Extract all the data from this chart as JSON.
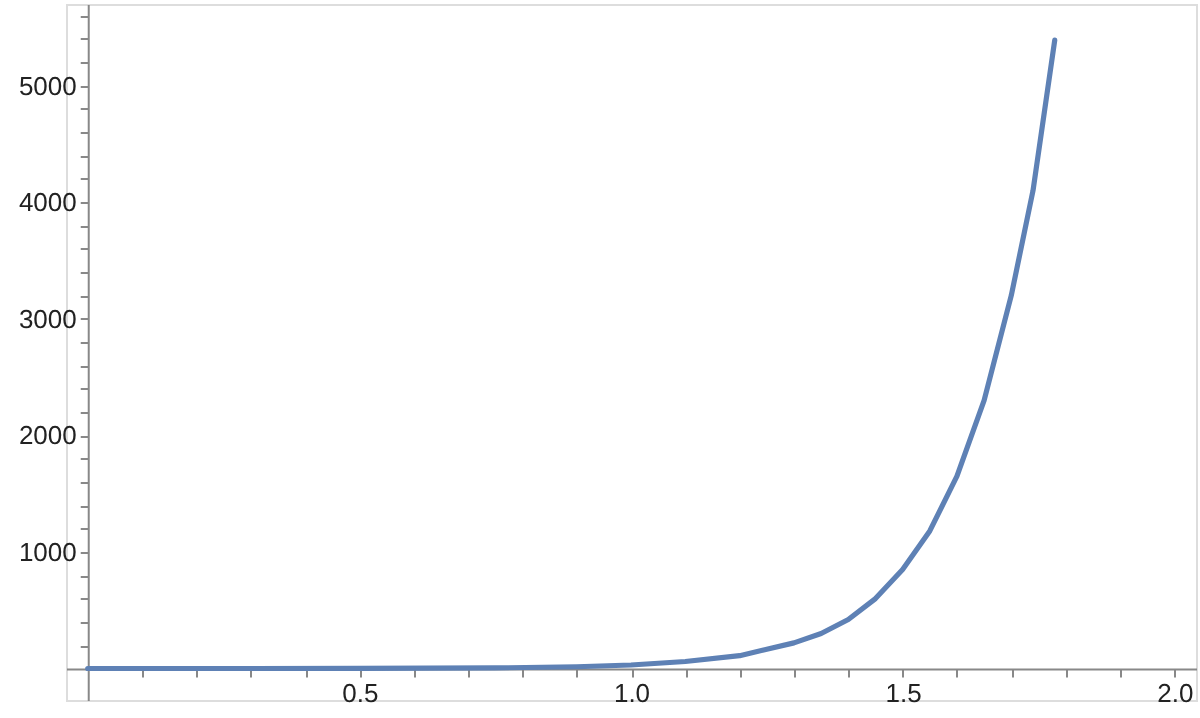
{
  "chart_data": {
    "type": "line",
    "x": [
      0,
      0.25,
      0.5,
      0.75,
      0.9,
      1.0,
      1.1,
      1.2,
      1.3,
      1.35,
      1.4,
      1.45,
      1.5,
      1.55,
      1.6,
      1.65,
      1.7,
      1.74,
      1.78
    ],
    "series": [
      {
        "color": "#5e81b5",
        "values": [
          0,
          0,
          1,
          5,
          15,
          30,
          60,
          110,
          220,
          300,
          420,
          600,
          850,
          1180,
          1650,
          2300,
          3200,
          4100,
          5390
        ]
      }
    ],
    "xlim": [
      -0.04,
      2.04
    ],
    "ylim": [
      -270,
      5700
    ],
    "xticks": [
      {
        "value": 0.1,
        "label": null
      },
      {
        "value": 0.2,
        "label": null
      },
      {
        "value": 0.3,
        "label": null
      },
      {
        "value": 0.4,
        "label": null
      },
      {
        "value": 0.5,
        "label": "0.5"
      },
      {
        "value": 0.6,
        "label": null
      },
      {
        "value": 0.7,
        "label": null
      },
      {
        "value": 0.8,
        "label": null
      },
      {
        "value": 0.9,
        "label": null
      },
      {
        "value": 1.0,
        "label": "1.0"
      },
      {
        "value": 1.1,
        "label": null
      },
      {
        "value": 1.2,
        "label": null
      },
      {
        "value": 1.3,
        "label": null
      },
      {
        "value": 1.4,
        "label": null
      },
      {
        "value": 1.5,
        "label": "1.5"
      },
      {
        "value": 1.6,
        "label": null
      },
      {
        "value": 1.7,
        "label": null
      },
      {
        "value": 1.8,
        "label": null
      },
      {
        "value": 1.9,
        "label": null
      },
      {
        "value": 2.0,
        "label": "2.0"
      }
    ],
    "yticks": [
      {
        "value": 200,
        "label": null
      },
      {
        "value": 400,
        "label": null
      },
      {
        "value": 600,
        "label": null
      },
      {
        "value": 800,
        "label": null
      },
      1000,
      {
        "value": 1200,
        "label": null
      },
      {
        "value": 1400,
        "label": null
      },
      {
        "value": 1600,
        "label": null
      },
      {
        "value": 1800,
        "label": null
      },
      2000,
      {
        "value": 2200,
        "label": null
      },
      {
        "value": 2400,
        "label": null
      },
      {
        "value": 2600,
        "label": null
      },
      {
        "value": 2800,
        "label": null
      },
      3000,
      {
        "value": 3200,
        "label": null
      },
      {
        "value": 3400,
        "label": null
      },
      {
        "value": 3600,
        "label": null
      },
      {
        "value": 3800,
        "label": null
      },
      4000,
      {
        "value": 4200,
        "label": null
      },
      {
        "value": 4400,
        "label": null
      },
      {
        "value": 4600,
        "label": null
      },
      {
        "value": 4800,
        "label": null
      },
      5000,
      {
        "value": 5200,
        "label": null
      },
      {
        "value": 5400,
        "label": null
      },
      {
        "value": 5600,
        "label": null
      }
    ],
    "grid": false,
    "marker": "none",
    "line_style": "solid"
  }
}
